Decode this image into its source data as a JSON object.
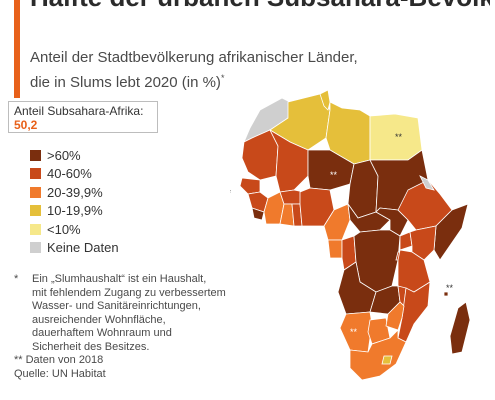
{
  "header": {
    "title": "Hälfte der urbanen Subsahara-Bevölkerung lebt in Slums",
    "subtitle_line1": "Anteil der Stadtbevölkerung afrikanischer Länder,",
    "subtitle_line2": "die in Slums lebt 2020 (in %)",
    "subtitle_mark": "*"
  },
  "highlight": {
    "label": "Anteil Subsahara-Afrika:",
    "value": "50,2"
  },
  "legend": [
    {
      "label": ">60%",
      "color": "#7a2e0e"
    },
    {
      "label": "40-60%",
      "color": "#c8491a"
    },
    {
      "label": "20-39,9%",
      "color": "#f07a2c"
    },
    {
      "label": "10-19,9%",
      "color": "#e5bf3a"
    },
    {
      "label": "<10%",
      "color": "#f6e88a"
    },
    {
      "label": "Keine Daten",
      "color": "#cfcfcf"
    }
  ],
  "map": {
    "marker_text": "**"
  },
  "notes": {
    "star_mark": "*",
    "footnote_lines": [
      "Ein „Slumhaushalt“ ist ein Haushalt,",
      "mit fehlendem Zugang zu verbessertem",
      "Wasser- und Sanitäreinrichtungen,",
      "ausreichender Wohnfläche,",
      "dauerhaftem Wohnraum und",
      "Sicherheit des Besitzes."
    ],
    "data_note": "** Daten von 2018",
    "source": "Quelle: UN Habitat"
  }
}
